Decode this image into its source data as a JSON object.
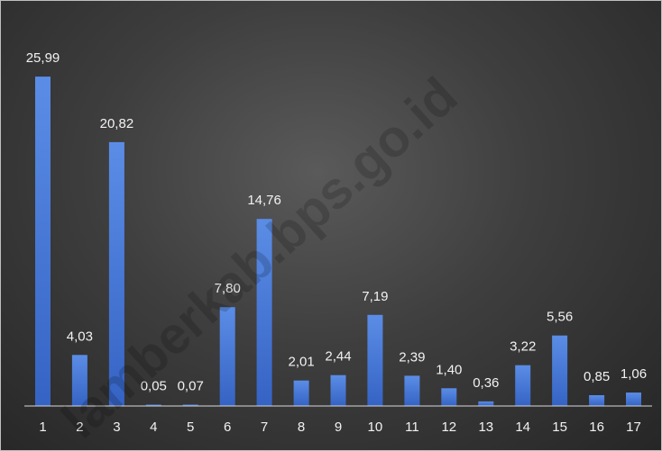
{
  "chart_data": {
    "type": "bar",
    "categories": [
      "1",
      "2",
      "3",
      "4",
      "5",
      "6",
      "7",
      "8",
      "9",
      "10",
      "11",
      "12",
      "13",
      "14",
      "15",
      "16",
      "17"
    ],
    "values": [
      25.99,
      4.03,
      20.82,
      0.05,
      0.07,
      7.8,
      14.76,
      2.01,
      2.44,
      7.19,
      2.39,
      1.4,
      0.36,
      3.22,
      5.56,
      0.85,
      1.06
    ],
    "data_labels": [
      "25,99",
      "4,03",
      "20,82",
      "0,05",
      "0,07",
      "7,80",
      "14,76",
      "2,01",
      "2,44",
      "7,19",
      "2,39",
      "1,40",
      "0,36",
      "3,22",
      "5,56",
      "0,85",
      "1,06"
    ],
    "title": "",
    "xlabel": "",
    "ylabel": "",
    "ylim": [
      0,
      26
    ],
    "grid": false,
    "legend": "none",
    "colors": {
      "bar_top": "#5b8de6",
      "bar_bottom": "#3563c4",
      "axis": "#d9d9d9",
      "text": "#f2f2f2"
    }
  },
  "watermark": "lamberkab.bps.go.id"
}
